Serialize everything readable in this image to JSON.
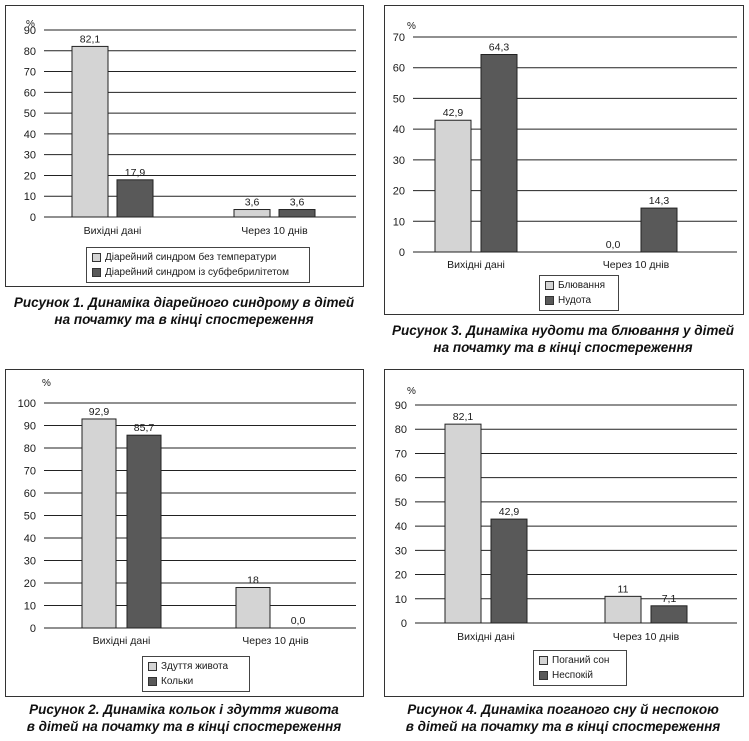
{
  "colors": {
    "light": "#d4d4d4",
    "dark": "#595959"
  },
  "chart_data": [
    {
      "type": "bar",
      "unit_label": "%",
      "ylim": [
        0,
        90
      ],
      "ticks": [
        0,
        10,
        20,
        30,
        40,
        50,
        60,
        70,
        80,
        90
      ],
      "categories": [
        "Вихідні дані",
        "Через 10 днів"
      ],
      "series": [
        {
          "name": "Діарейний синдром без температури",
          "values": [
            82.1,
            3.6
          ],
          "labels": [
            "82,1",
            "3,6"
          ]
        },
        {
          "name": "Діарейний синдром із субфебрилітетом",
          "values": [
            17.9,
            3.6
          ],
          "labels": [
            "17,9",
            "3,6"
          ]
        }
      ],
      "grid": true,
      "legend": "bottom",
      "caption": [
        "Рисунок 1. Динаміка діарейного синдрому в дітей",
        "на початку та в кінці спостереження"
      ]
    },
    {
      "type": "bar",
      "unit_label": "%",
      "ylim": [
        0,
        70
      ],
      "ticks": [
        0,
        10,
        20,
        30,
        40,
        50,
        60,
        70
      ],
      "categories": [
        "Вихідні дані",
        "Через 10 днів"
      ],
      "series": [
        {
          "name": "Блювання",
          "values": [
            42.9,
            0.0
          ],
          "labels": [
            "42,9",
            "0,0"
          ]
        },
        {
          "name": "Нудота",
          "values": [
            64.3,
            14.3
          ],
          "labels": [
            "64,3",
            "14,3"
          ]
        }
      ],
      "grid": true,
      "legend": "bottom",
      "caption": [
        "Рисунок 3. Динаміка нудоти та блювання у дітей",
        "на початку та в кінці спостереження"
      ]
    },
    {
      "type": "bar",
      "unit_label": "%",
      "ylim": [
        0,
        100
      ],
      "ticks": [
        0,
        10,
        20,
        30,
        40,
        50,
        60,
        70,
        80,
        90,
        100
      ],
      "categories": [
        "Вихідні дані",
        "Через 10 днів"
      ],
      "series": [
        {
          "name": "Здуття живота",
          "values": [
            92.9,
            18
          ],
          "labels": [
            "92,9",
            "18"
          ]
        },
        {
          "name": "Кольки",
          "values": [
            85.7,
            0.0
          ],
          "labels": [
            "85,7",
            "0,0"
          ]
        }
      ],
      "grid": true,
      "legend": "bottom",
      "caption": [
        "Рисунок 2. Динаміка кольок і здуття живота",
        "в дітей на початку та в кінці спостереження"
      ]
    },
    {
      "type": "bar",
      "unit_label": "%",
      "ylim": [
        0,
        90
      ],
      "ticks": [
        0,
        10,
        20,
        30,
        40,
        50,
        60,
        70,
        80,
        90
      ],
      "categories": [
        "Вихідні дані",
        "Через 10 днів"
      ],
      "series": [
        {
          "name": "Поганий сон",
          "values": [
            82.1,
            11
          ],
          "labels": [
            "82,1",
            "11"
          ]
        },
        {
          "name": "Неспокій",
          "values": [
            42.9,
            7.1
          ],
          "labels": [
            "42,9",
            "7,1"
          ]
        }
      ],
      "grid": true,
      "legend": "bottom",
      "caption": [
        "Рисунок 4. Динаміка поганого сну й неспокою",
        "в дітей на початку та в кінці спостереження"
      ]
    }
  ]
}
